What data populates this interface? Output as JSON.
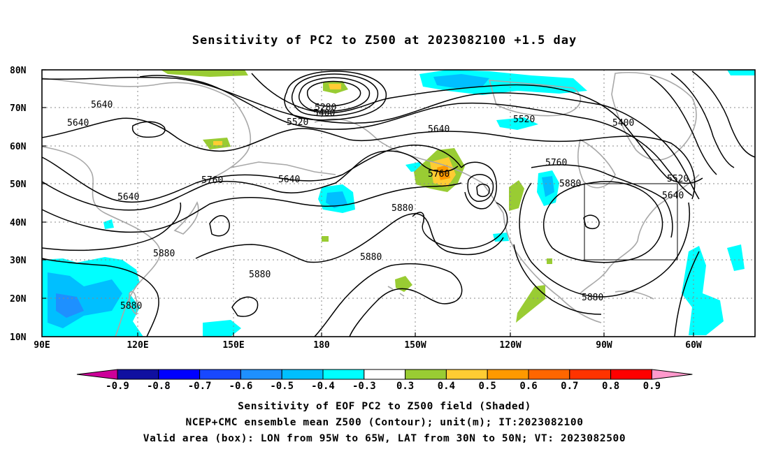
{
  "title": "Sensitivity of PC2 to Z500 at 2023082100 +1.5 day",
  "axes": {
    "lat_labels": [
      "80N",
      "70N",
      "60N",
      "50N",
      "40N",
      "30N",
      "20N",
      "10N"
    ],
    "lon_labels": [
      "90E",
      "120E",
      "150E",
      "180",
      "150W",
      "120W",
      "90W",
      "60W"
    ]
  },
  "contour_labels": [
    "5280",
    "5400",
    "5520",
    "5640",
    "5640",
    "5640",
    "5760",
    "5640",
    "5880",
    "5880",
    "5880",
    "5880",
    "5640",
    "5760",
    "5520",
    "5400",
    "5760",
    "5880",
    "5520",
    "5640",
    "5880",
    "5880",
    "5640"
  ],
  "colorbar": {
    "labels": [
      "-0.9",
      "-0.8",
      "-0.7",
      "-0.6",
      "-0.5",
      "-0.4",
      "-0.3",
      "0.3",
      "0.4",
      "0.5",
      "0.6",
      "0.7",
      "0.8",
      "0.9"
    ],
    "colors": [
      "#1010a0",
      "#0000ff",
      "#1848ff",
      "#1e90ff",
      "#00bfff",
      "#00ffff",
      "#ffffff",
      "#99cc33",
      "#ffcc33",
      "#ff9900",
      "#ff6600",
      "#ff3300",
      "#ff0000"
    ],
    "left_tri_color": "#cc0099",
    "right_tri_color": "#ff99cc"
  },
  "captions": {
    "line1": "Sensitivity of EOF PC2 to Z500 field (Shaded)",
    "line2": "NCEP+CMC ensemble mean Z500 (Contour); unit(m); IT:2023082100",
    "line3": "Valid area (box): LON from 95W to 65W, LAT from 30N to 50N; VT: 2023082500"
  }
}
